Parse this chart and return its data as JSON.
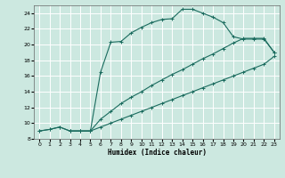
{
  "xlabel": "Humidex (Indice chaleur)",
  "bg_color": "#cce8e0",
  "grid_color": "#ffffff",
  "line_color": "#1a6b5e",
  "xlim": [
    -0.5,
    23.5
  ],
  "ylim": [
    8,
    25
  ],
  "xtick_labels": [
    "0",
    "1",
    "2",
    "3",
    "4",
    "5",
    "6",
    "7",
    "8",
    "9",
    "10",
    "11",
    "12",
    "13",
    "14",
    "15",
    "16",
    "17",
    "18",
    "19",
    "20",
    "21",
    "22",
    "23"
  ],
  "xtick_vals": [
    0,
    1,
    2,
    3,
    4,
    5,
    6,
    7,
    8,
    9,
    10,
    11,
    12,
    13,
    14,
    15,
    16,
    17,
    18,
    19,
    20,
    21,
    22,
    23
  ],
  "ytick_vals": [
    8,
    10,
    12,
    14,
    16,
    18,
    20,
    22,
    24
  ],
  "curve1_x": [
    0,
    1,
    2,
    3,
    4,
    5,
    6,
    7,
    8,
    9,
    10,
    11,
    12,
    13,
    14,
    15,
    16,
    17,
    18,
    19,
    20,
    21,
    22,
    23
  ],
  "curve1_y": [
    9.0,
    9.2,
    9.5,
    9.0,
    9.0,
    9.0,
    16.5,
    20.3,
    20.4,
    21.5,
    22.2,
    22.8,
    23.2,
    23.3,
    24.5,
    24.5,
    24.0,
    23.5,
    22.8,
    21.0,
    20.7,
    20.7,
    20.7,
    19.0
  ],
  "curve2_x": [
    3,
    4,
    5,
    6,
    7,
    8,
    9,
    10,
    11,
    12,
    13,
    14,
    15,
    16,
    17,
    18,
    19,
    20,
    21,
    22,
    23
  ],
  "curve2_y": [
    9.0,
    9.0,
    9.0,
    10.5,
    11.5,
    12.5,
    13.3,
    14.0,
    14.8,
    15.5,
    16.2,
    16.8,
    17.5,
    18.2,
    18.8,
    19.5,
    20.2,
    20.8,
    20.8,
    20.8,
    19.0
  ],
  "curve3_x": [
    0,
    1,
    2,
    3,
    4,
    5,
    6,
    7,
    8,
    9,
    10,
    11,
    12,
    13,
    14,
    15,
    16,
    17,
    18,
    19,
    20,
    21,
    22,
    23
  ],
  "curve3_y": [
    9.0,
    9.2,
    9.5,
    9.0,
    9.0,
    9.0,
    9.5,
    10.0,
    10.5,
    11.0,
    11.5,
    12.0,
    12.5,
    13.0,
    13.5,
    14.0,
    14.5,
    15.0,
    15.5,
    16.0,
    16.5,
    17.0,
    17.5,
    18.5
  ]
}
